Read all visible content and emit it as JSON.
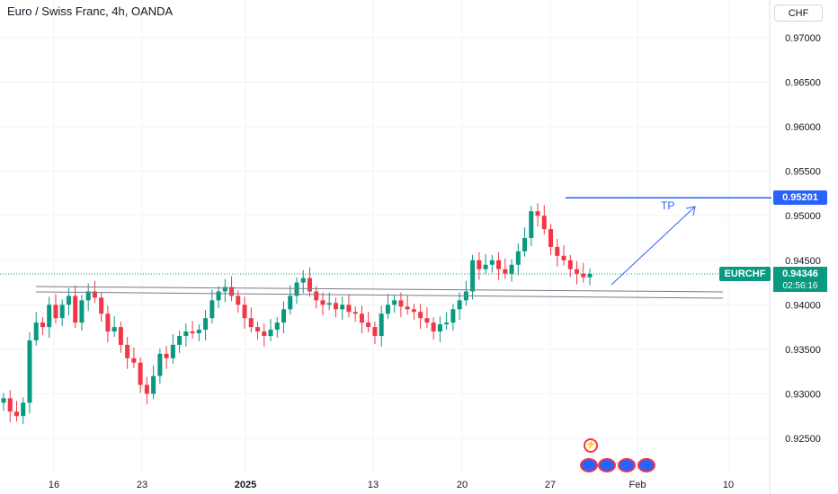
{
  "header": {
    "title": "Euro / Swiss Franc, 4h, OANDA",
    "currency_button": "CHF"
  },
  "price_scale": {
    "current_symbol": "EURCHF",
    "current_price": "0.94346",
    "countdown": "02:56:16",
    "target_price": "0.95201"
  },
  "annotations": {
    "tp_label": "TP"
  },
  "colors": {
    "up": "#089981",
    "down": "#f23645",
    "target_line": "#2962ff",
    "trend_lines": "#787b86",
    "arrow": "#2962ff",
    "current_tag": "#089981"
  },
  "chart_data": {
    "type": "candlestick",
    "title": "Euro / Swiss Franc, 4h, OANDA",
    "ylim": [
      0.9205,
      0.9745
    ],
    "y_ticks": [
      "0.97000",
      "0.96500",
      "0.96000",
      "0.95500",
      "0.95000",
      "0.94500",
      "0.94000",
      "0.93500",
      "0.93000",
      "0.92500"
    ],
    "x_ticks": [
      "16",
      "23",
      "2025",
      "13",
      "20",
      "27",
      "Feb",
      "10"
    ],
    "current_price": 0.94346,
    "target_price": 0.95201,
    "series_close": [
      0.9295,
      0.928,
      0.9275,
      0.929,
      0.936,
      0.938,
      0.9375,
      0.94,
      0.9385,
      0.94,
      0.941,
      0.938,
      0.9405,
      0.9415,
      0.9408,
      0.939,
      0.937,
      0.9375,
      0.9355,
      0.934,
      0.9335,
      0.931,
      0.93,
      0.932,
      0.9345,
      0.934,
      0.9355,
      0.9365,
      0.937,
      0.9368,
      0.9372,
      0.9385,
      0.9405,
      0.9415,
      0.942,
      0.941,
      0.94,
      0.9385,
      0.9375,
      0.937,
      0.9365,
      0.9372,
      0.938,
      0.9395,
      0.941,
      0.9425,
      0.943,
      0.9415,
      0.9405,
      0.94,
      0.9402,
      0.9395,
      0.94,
      0.9392,
      0.939,
      0.938,
      0.9375,
      0.9365,
      0.939,
      0.94,
      0.9405,
      0.9398,
      0.9395,
      0.9392,
      0.9385,
      0.938,
      0.937,
      0.9378,
      0.938,
      0.9395,
      0.9405,
      0.9415,
      0.945,
      0.944,
      0.9445,
      0.945,
      0.944,
      0.9435,
      0.9445,
      0.946,
      0.9475,
      0.9505,
      0.95,
      0.9485,
      0.9465,
      0.9455,
      0.945,
      0.944,
      0.9435,
      0.9431,
      0.94346
    ],
    "series_open": [
      0.929,
      0.9295,
      0.928,
      0.9275,
      0.929,
      0.936,
      0.938,
      0.9375,
      0.94,
      0.9385,
      0.94,
      0.941,
      0.938,
      0.9405,
      0.9415,
      0.9408,
      0.939,
      0.937,
      0.9375,
      0.9355,
      0.934,
      0.9335,
      0.931,
      0.93,
      0.932,
      0.9345,
      0.934,
      0.9355,
      0.9365,
      0.937,
      0.9368,
      0.9372,
      0.9385,
      0.9405,
      0.9415,
      0.942,
      0.941,
      0.94,
      0.9385,
      0.9375,
      0.937,
      0.9365,
      0.9372,
      0.938,
      0.9395,
      0.941,
      0.9425,
      0.943,
      0.9415,
      0.9405,
      0.94,
      0.9402,
      0.9395,
      0.94,
      0.9392,
      0.939,
      0.938,
      0.9375,
      0.9365,
      0.939,
      0.94,
      0.9405,
      0.9398,
      0.9395,
      0.9392,
      0.9385,
      0.938,
      0.937,
      0.9378,
      0.938,
      0.9395,
      0.9405,
      0.9415,
      0.945,
      0.944,
      0.9445,
      0.945,
      0.944,
      0.9435,
      0.9445,
      0.946,
      0.9475,
      0.9505,
      0.95,
      0.9485,
      0.9465,
      0.9455,
      0.945,
      0.944,
      0.9435,
      0.9431
    ]
  }
}
